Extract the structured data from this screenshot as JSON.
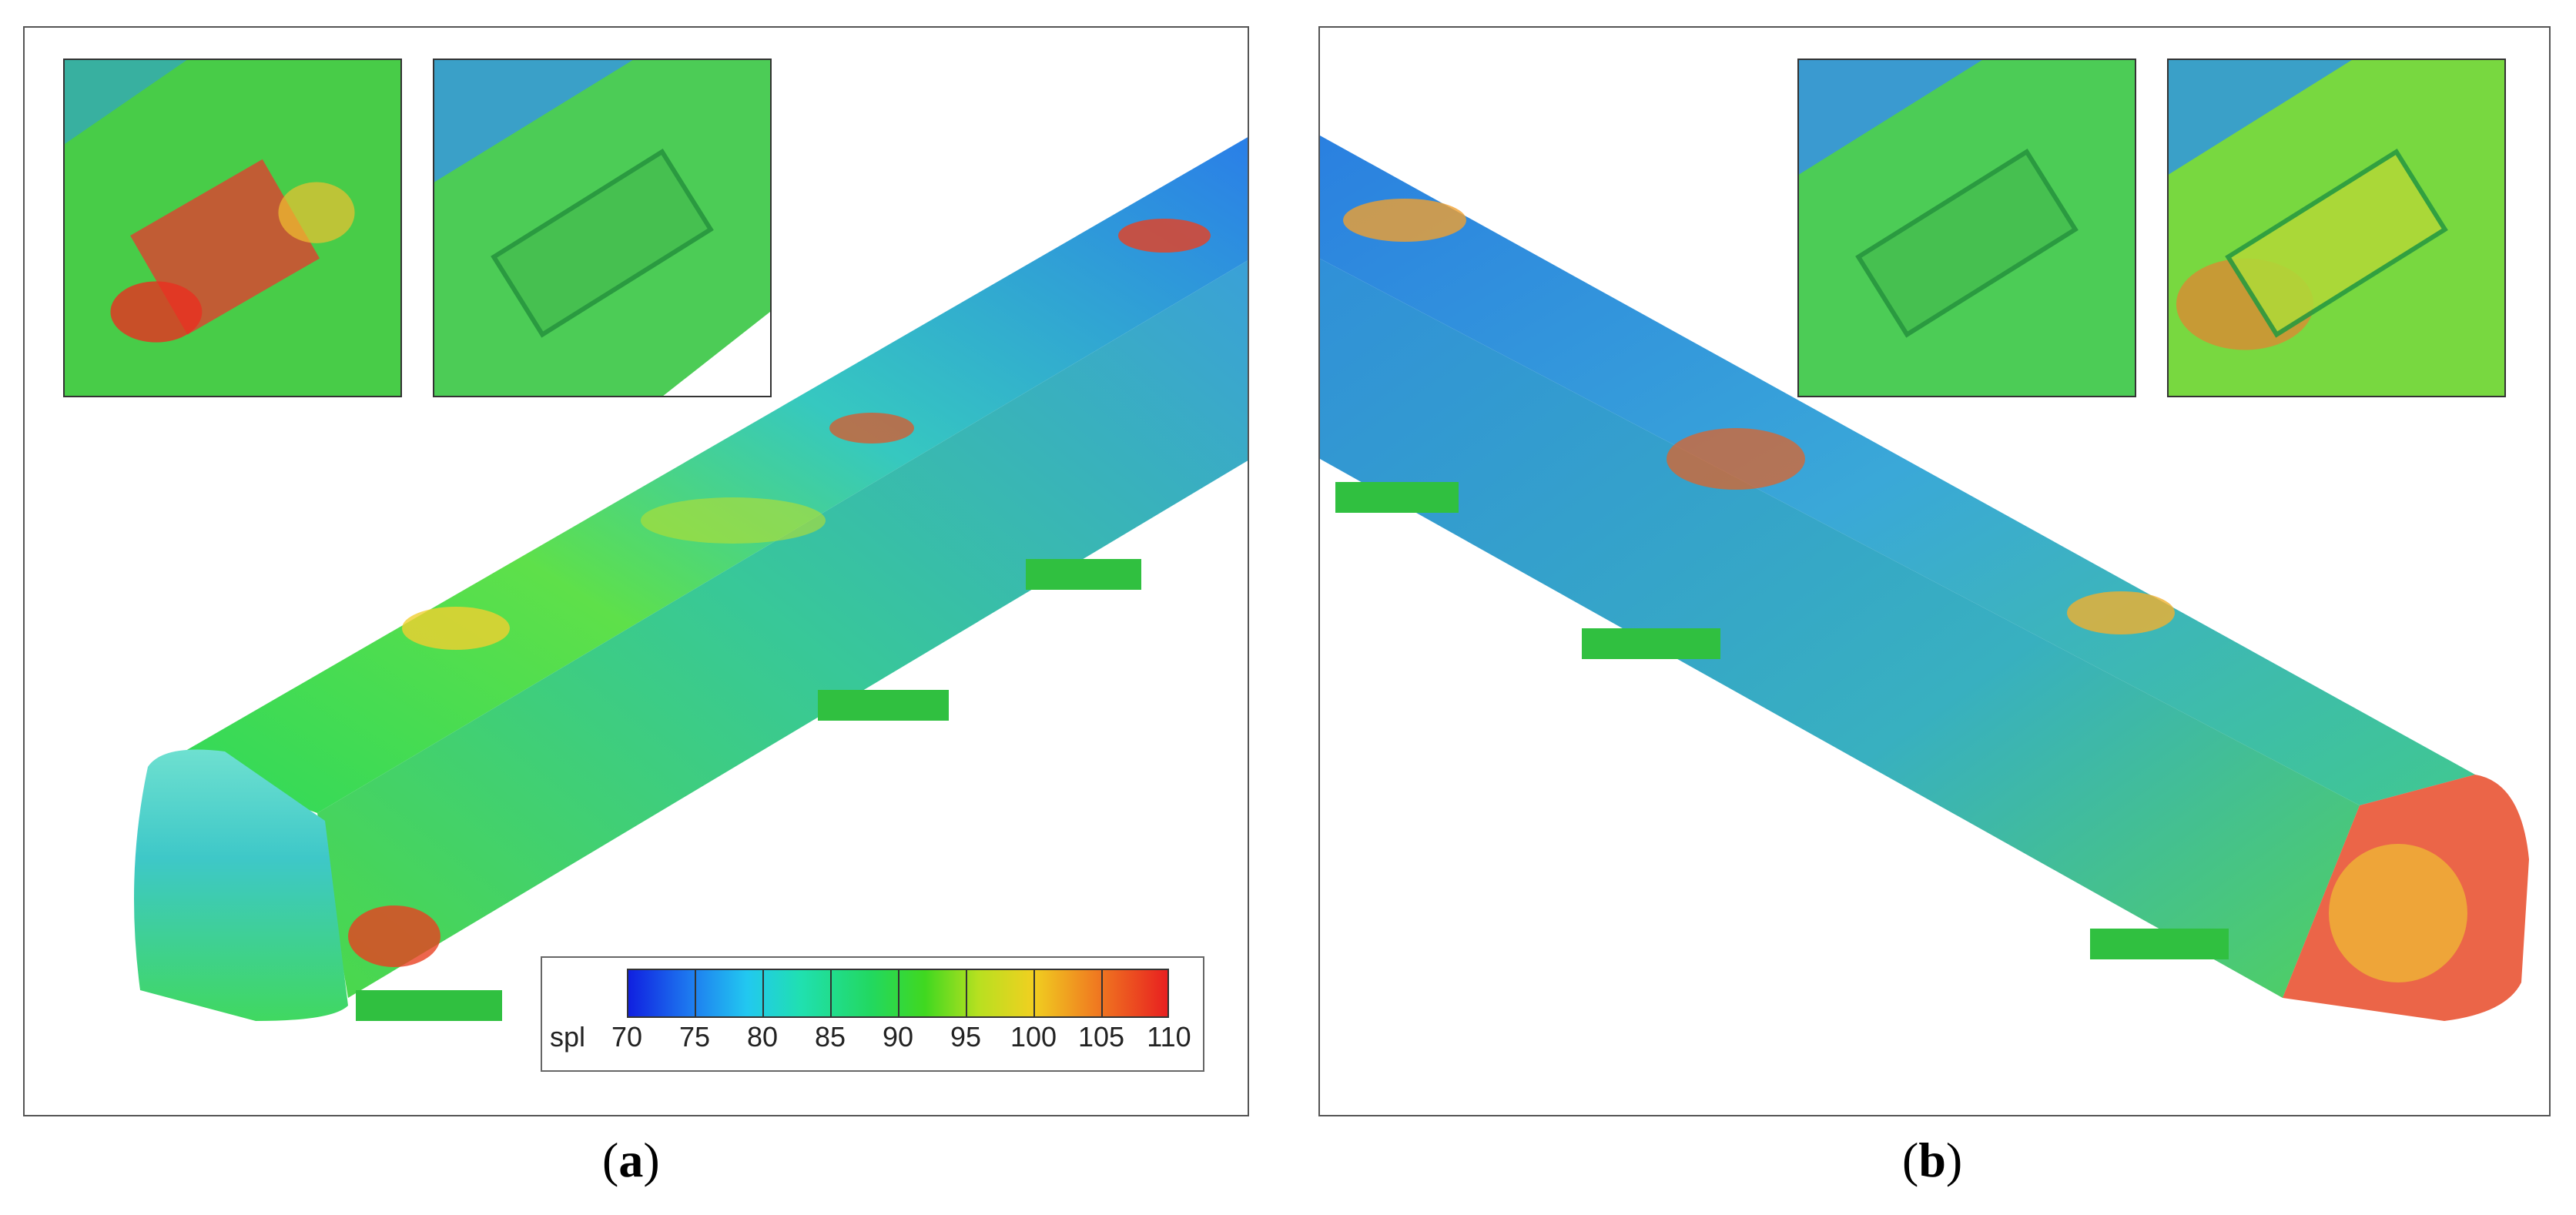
{
  "figure": {
    "panel_a_label_letter": "a",
    "panel_b_label_letter": "b",
    "paren_open": "(",
    "paren_close": ")"
  },
  "legend": {
    "variable": "spl",
    "ticks": [
      "70",
      "75",
      "80",
      "85",
      "90",
      "95",
      "100",
      "105",
      "110"
    ]
  },
  "colors": {
    "low": "#1020e0",
    "mid": "#22d860",
    "high": "#e82020"
  }
}
